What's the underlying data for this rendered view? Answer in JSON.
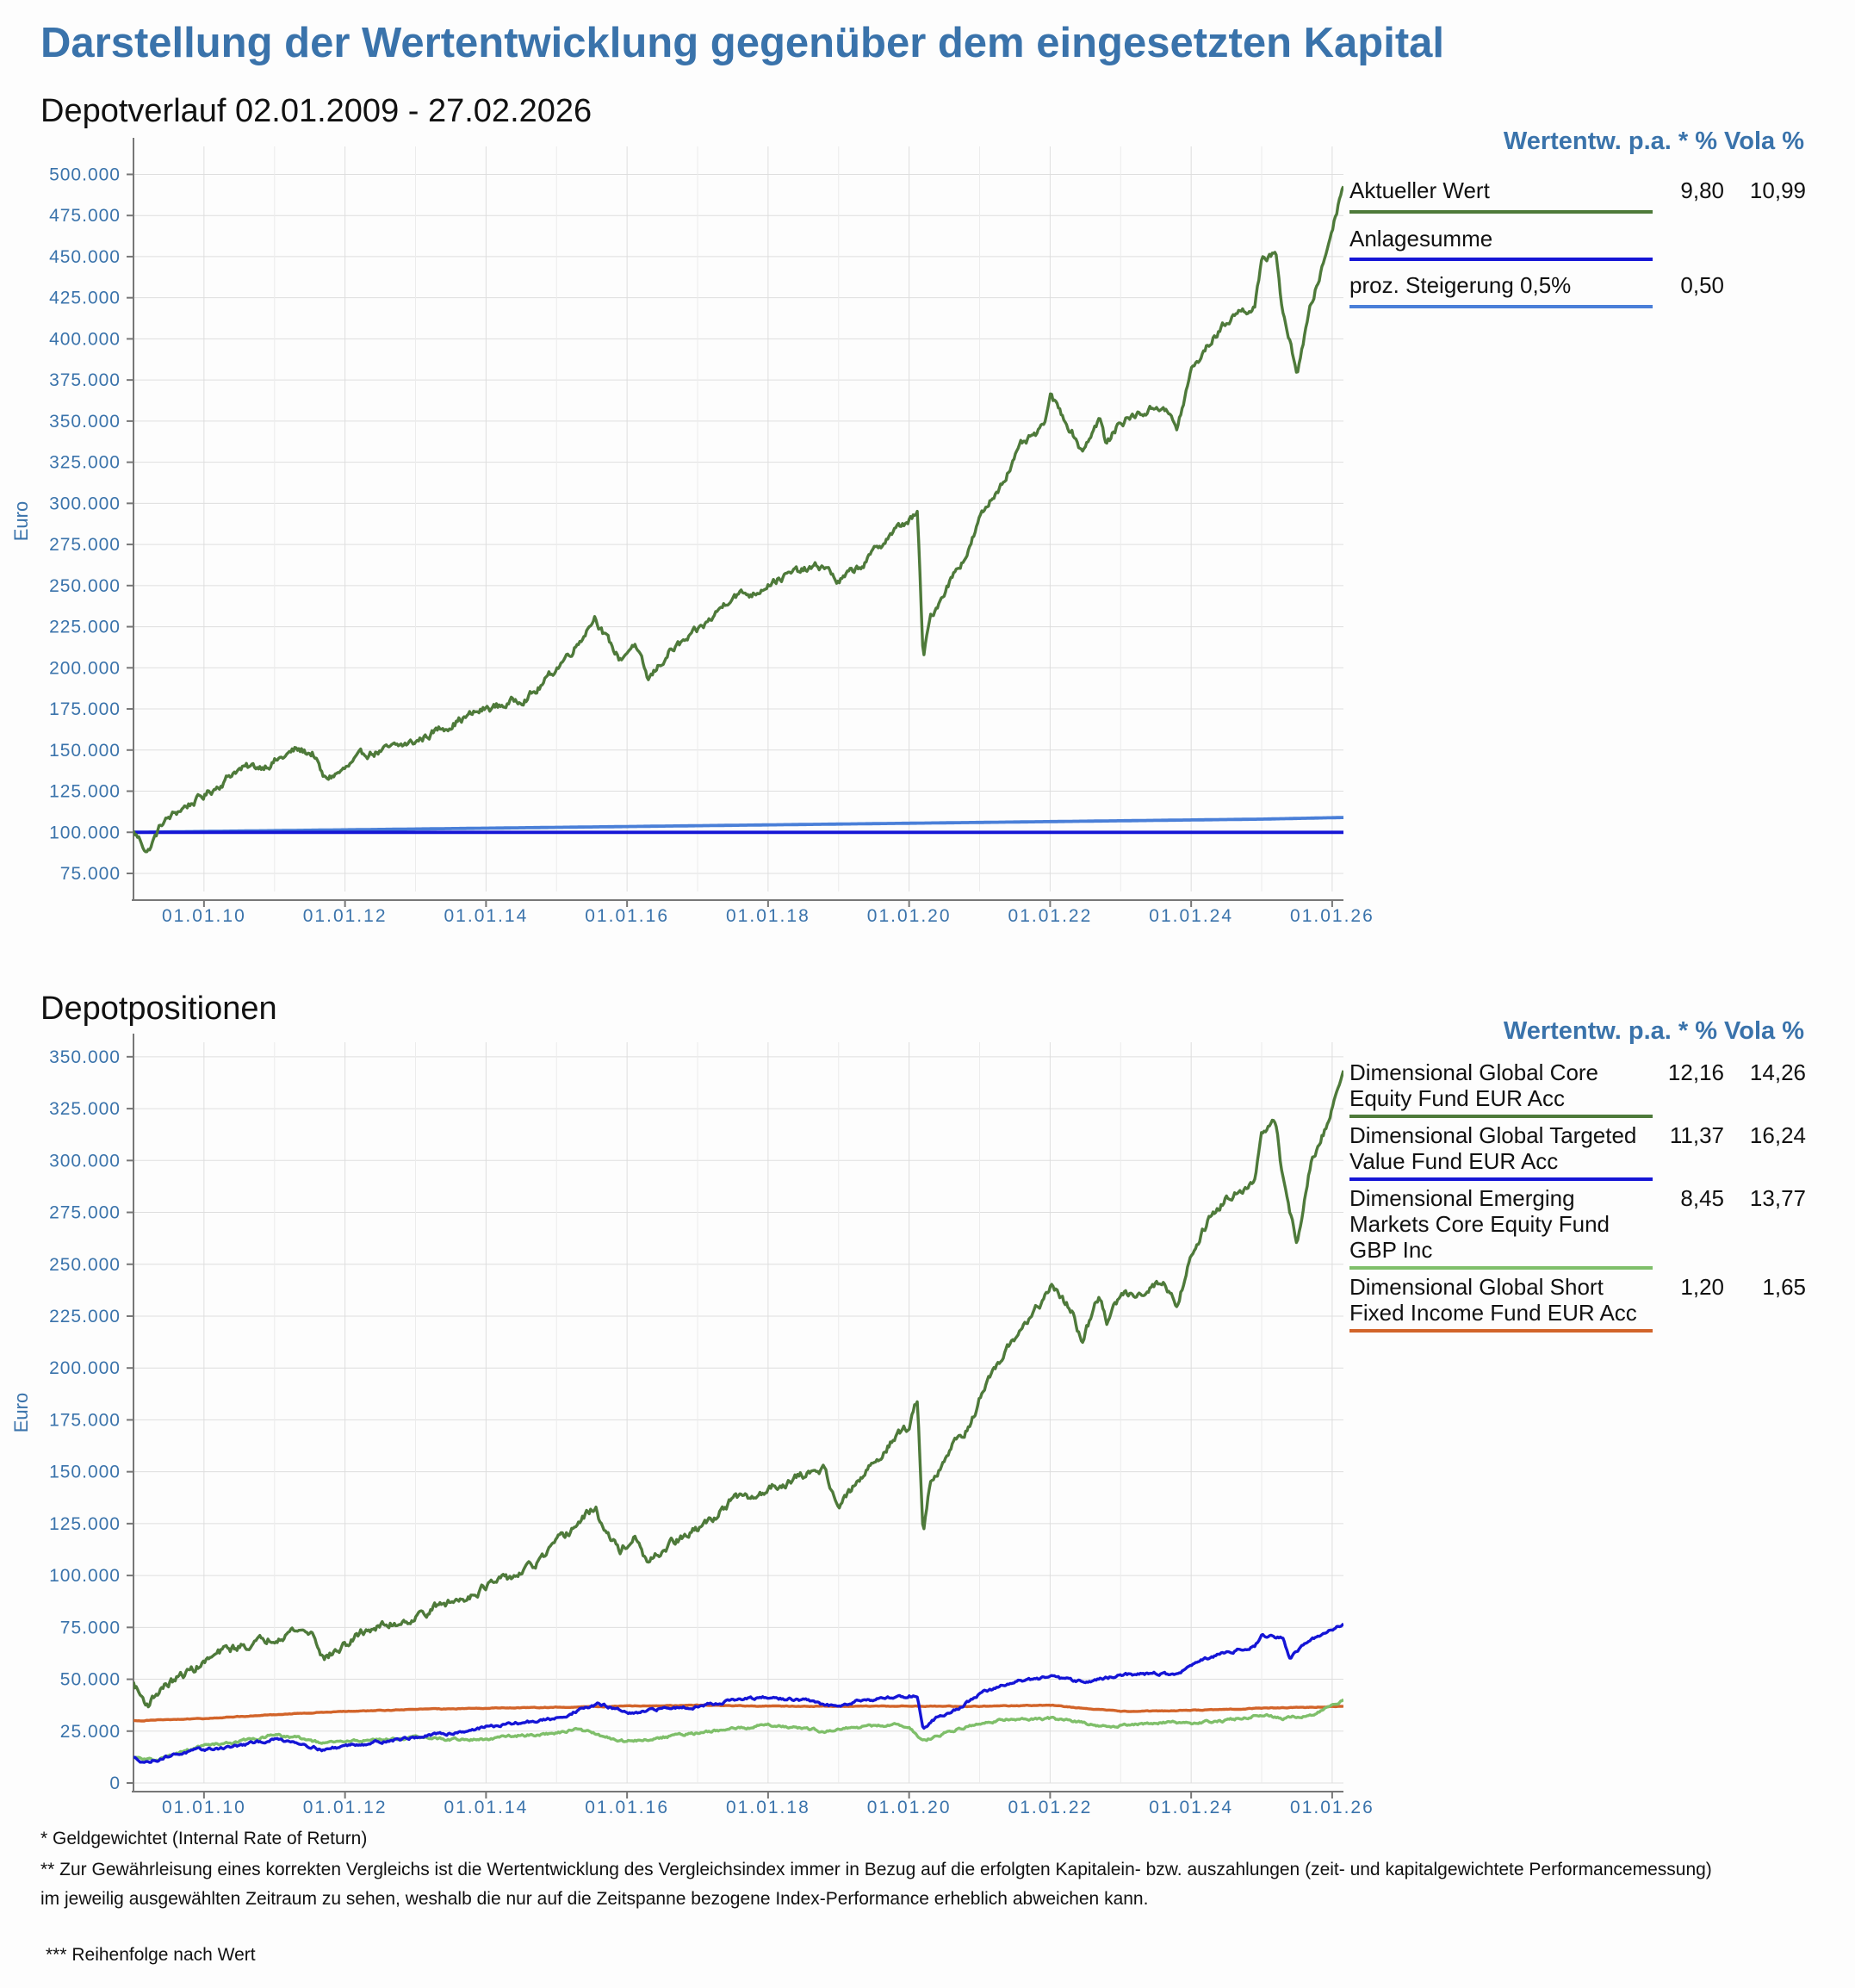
{
  "page": {
    "title": "Darstellung der Wertentwicklung gegenüber dem eingesetzten Kapital",
    "colors": {
      "accent": "#3a73ab",
      "green_dark": "#4e7a3a",
      "blue": "#1515d6",
      "light_blue": "#4a7fd8",
      "light_green": "#7fbf6a",
      "orange": "#d2642a"
    }
  },
  "chart1": {
    "section_title": "Depotverlauf 02.01.2009 - 27.02.2026",
    "legend_header": "Wertentw. p.a. * % Vola %",
    "legend": [
      {
        "name": "Aktueller Wert",
        "value1": "9,80",
        "value2": "10,99",
        "color": "#4e7a3a"
      },
      {
        "name": "Anlagesumme",
        "value1": "",
        "value2": "",
        "color": "#1515d6"
      },
      {
        "name": "proz. Steigerung 0,5%",
        "value1": "0,50",
        "value2": "",
        "color": "#4a7fd8"
      }
    ]
  },
  "chart2": {
    "section_title": "Depotpositionen",
    "legend_header": "Wertentw. p.a. * % Vola %",
    "legend": [
      {
        "name": "Dimensional Global Core\nEquity Fund EUR Acc",
        "value1": "12,16",
        "value2": "14,26",
        "color": "#4e7a3a"
      },
      {
        "name": "Dimensional Global Targeted\nValue Fund EUR Acc",
        "value1": "11,37",
        "value2": "16,24",
        "color": "#1515d6"
      },
      {
        "name": "Dimensional Emerging\nMarkets Core Equity Fund\nGBP Inc",
        "value1": "8,45",
        "value2": "13,77",
        "color": "#7fbf6a"
      },
      {
        "name": "Dimensional Global Short\nFixed Income Fund EUR Acc",
        "value1": "1,20",
        "value2": "1,65",
        "color": "#d2642a"
      }
    ]
  },
  "footnotes": {
    "note1": "* Geldgewichtet (Internal Rate of Return)",
    "note2": "** Zur Gewährleisung eines korrekten Vergleichs ist die Wertentwicklung des Vergleichsindex immer in Bezug auf die erfolgten Kapitalein- bzw. auszahlungen (zeit- und kapitalgewichtete Performancemessung) im jeweilig ausgewählten Zeitraum zu sehen, weshalb die nur auf die Zeitspanne bezogene Index-Performance erheblich abweichen kann.",
    "note3": "*** Reihenfolge nach Wert"
  },
  "chart_data": [
    {
      "type": "line",
      "title": "Depotverlauf 02.01.2009 - 27.02.2026",
      "ylabel": "Euro",
      "xlabel": "",
      "xlim": [
        2009.0,
        2026.16
      ],
      "ylim": [
        64000,
        517000
      ],
      "yticks": [
        75000,
        100000,
        125000,
        150000,
        175000,
        200000,
        225000,
        250000,
        275000,
        300000,
        325000,
        350000,
        375000,
        400000,
        425000,
        450000,
        475000,
        500000
      ],
      "ytick_labels": [
        "75.000",
        "100.000",
        "125.000",
        "150.000",
        "175.000",
        "200.000",
        "225.000",
        "250.000",
        "275.000",
        "300.000",
        "325.000",
        "350.000",
        "375.000",
        "400.000",
        "425.000",
        "450.000",
        "475.000",
        "500.000"
      ],
      "xticks": [
        2010,
        2012,
        2014,
        2016,
        2018,
        2020,
        2022,
        2024,
        2026
      ],
      "xtick_labels": [
        "01.01.10",
        "01.01.12",
        "01.01.14",
        "01.01.16",
        "01.01.18",
        "01.01.20",
        "01.01.22",
        "01.01.24",
        "01.01.26"
      ],
      "grid": true,
      "series": [
        {
          "name": "Aktueller Wert",
          "color": "#4e7a3a",
          "noise": 2500,
          "x": [
            2009.0,
            2009.1,
            2009.2,
            2009.4,
            2009.7,
            2010.0,
            2010.3,
            2010.45,
            2010.8,
            2011.1,
            2011.3,
            2011.55,
            2011.7,
            2012.0,
            2012.3,
            2012.6,
            2013.0,
            2013.3,
            2013.6,
            2014.0,
            2014.3,
            2014.7,
            2015.0,
            2015.3,
            2015.55,
            2015.7,
            2015.9,
            2016.1,
            2016.3,
            2016.6,
            2016.9,
            2017.2,
            2017.5,
            2017.8,
            2018.0,
            2018.4,
            2018.8,
            2019.0,
            2019.4,
            2019.7,
            2020.0,
            2020.12,
            2020.2,
            2020.3,
            2020.6,
            2020.85,
            2021.0,
            2021.3,
            2021.6,
            2021.9,
            2022.0,
            2022.3,
            2022.45,
            2022.7,
            2022.8,
            2023.0,
            2023.3,
            2023.6,
            2023.8,
            2024.0,
            2024.3,
            2024.6,
            2024.9,
            2025.0,
            2025.2,
            2025.3,
            2025.5,
            2025.7,
            2025.9,
            2026.16
          ],
          "y": [
            100000,
            95000,
            88000,
            105000,
            115000,
            122000,
            132000,
            138000,
            140000,
            145000,
            150000,
            148000,
            132000,
            138000,
            148000,
            150000,
            155000,
            162000,
            168000,
            175000,
            178000,
            185000,
            200000,
            215000,
            232000,
            218000,
            205000,
            215000,
            192000,
            210000,
            218000,
            230000,
            245000,
            245000,
            252000,
            258000,
            262000,
            252000,
            265000,
            280000,
            290000,
            293000,
            205000,
            230000,
            255000,
            272000,
            290000,
            312000,
            335000,
            345000,
            365000,
            345000,
            332000,
            352000,
            335000,
            350000,
            355000,
            360000,
            345000,
            380000,
            400000,
            415000,
            420000,
            445000,
            455000,
            415000,
            380000,
            420000,
            450000,
            495000
          ]
        },
        {
          "name": "Anlagesumme",
          "color": "#1515d6",
          "x": [
            2009.0,
            2026.16
          ],
          "y": [
            100000,
            100000
          ]
        },
        {
          "name": "proz. Steigerung 0,5%",
          "color": "#4a7fd8",
          "x": [
            2009.0,
            2011.0,
            2013.0,
            2015.0,
            2017.0,
            2019.0,
            2021.0,
            2023.0,
            2025.0,
            2026.16
          ],
          "y": [
            100000,
            101000,
            102000,
            103000,
            104000,
            105000,
            106000,
            107000,
            108000,
            109000
          ]
        }
      ]
    },
    {
      "type": "line",
      "title": "Depotpositionen",
      "ylabel": "Euro",
      "xlabel": "",
      "xlim": [
        2009.0,
        2026.16
      ],
      "ylim": [
        0,
        357000
      ],
      "yticks": [
        0,
        25000,
        50000,
        75000,
        100000,
        125000,
        150000,
        175000,
        200000,
        225000,
        250000,
        275000,
        300000,
        325000,
        350000
      ],
      "ytick_labels": [
        "0",
        "25.000",
        "50.000",
        "75.000",
        "100.000",
        "125.000",
        "150.000",
        "175.000",
        "200.000",
        "225.000",
        "250.000",
        "275.000",
        "300.000",
        "325.000",
        "350.000"
      ],
      "xticks": [
        2010,
        2012,
        2014,
        2016,
        2018,
        2020,
        2022,
        2024,
        2026
      ],
      "xtick_labels": [
        "01.01.10",
        "01.01.12",
        "01.01.14",
        "01.01.16",
        "01.01.18",
        "01.01.20",
        "01.01.22",
        "01.01.24",
        "01.01.26"
      ],
      "grid": true,
      "series": [
        {
          "name": "Dimensional Global Core Equity Fund EUR Acc",
          "color": "#4e7a3a",
          "noise": 2000,
          "x": [
            2009.0,
            2009.1,
            2009.2,
            2009.4,
            2009.7,
            2010.0,
            2010.3,
            2010.8,
            2011.1,
            2011.3,
            2011.55,
            2011.7,
            2012.0,
            2012.3,
            2012.6,
            2013.0,
            2013.3,
            2013.6,
            2014.0,
            2014.3,
            2014.7,
            2015.0,
            2015.3,
            2015.55,
            2015.7,
            2015.9,
            2016.1,
            2016.3,
            2016.6,
            2016.9,
            2017.2,
            2017.5,
            2017.8,
            2018.0,
            2018.4,
            2018.8,
            2019.0,
            2019.4,
            2019.7,
            2020.0,
            2020.12,
            2020.2,
            2020.3,
            2020.6,
            2020.85,
            2021.0,
            2021.3,
            2021.6,
            2021.9,
            2022.0,
            2022.3,
            2022.45,
            2022.7,
            2022.8,
            2023.0,
            2023.3,
            2023.6,
            2023.8,
            2024.0,
            2024.3,
            2024.6,
            2024.9,
            2025.0,
            2025.2,
            2025.3,
            2025.5,
            2025.7,
            2025.9,
            2026.16
          ],
          "y": [
            48000,
            42000,
            38000,
            46000,
            52000,
            58000,
            64000,
            68000,
            72000,
            74000,
            72000,
            60000,
            66000,
            74000,
            76000,
            80000,
            85000,
            88000,
            95000,
            98000,
            105000,
            115000,
            125000,
            133000,
            120000,
            112000,
            118000,
            105000,
            115000,
            120000,
            127000,
            137000,
            137000,
            142000,
            147000,
            152000,
            133000,
            150000,
            163000,
            172000,
            185000,
            122000,
            145000,
            162000,
            172000,
            185000,
            203000,
            220000,
            232000,
            240000,
            228000,
            212000,
            235000,
            222000,
            235000,
            237000,
            242000,
            230000,
            255000,
            275000,
            285000,
            290000,
            312000,
            318000,
            292000,
            260000,
            298000,
            315000,
            343000
          ]
        },
        {
          "name": "Dimensional Global Targeted Value Fund EUR Acc",
          "color": "#1515d6",
          "noise": 700,
          "x": [
            2009.0,
            2009.2,
            2009.6,
            2010.0,
            2010.5,
            2011.0,
            2011.3,
            2011.7,
            2012.0,
            2012.5,
            2013.0,
            2013.5,
            2014.0,
            2014.5,
            2015.0,
            2015.3,
            2015.6,
            2015.9,
            2016.1,
            2016.5,
            2017.0,
            2017.5,
            2018.0,
            2018.5,
            2018.9,
            2019.3,
            2019.7,
            2020.0,
            2020.12,
            2020.2,
            2020.4,
            2020.7,
            2021.0,
            2021.5,
            2022.0,
            2022.4,
            2022.7,
            2023.0,
            2023.5,
            2023.8,
            2024.0,
            2024.5,
            2024.9,
            2025.0,
            2025.3,
            2025.4,
            2025.6,
            2025.9,
            2026.16
          ],
          "y": [
            12000,
            10000,
            14000,
            16000,
            18000,
            21000,
            20000,
            16000,
            18000,
            20000,
            22000,
            24000,
            27000,
            29000,
            31000,
            35000,
            38000,
            35000,
            33000,
            36000,
            37000,
            40000,
            41000,
            40000,
            37000,
            40000,
            41000,
            42000,
            42000,
            26000,
            32000,
            36000,
            43000,
            49000,
            51000,
            49000,
            50000,
            52000,
            53000,
            52000,
            57000,
            63000,
            66000,
            71000,
            70000,
            60000,
            67000,
            72000,
            77000
          ]
        },
        {
          "name": "Dimensional Emerging Markets Core Equity Fund GBP Inc",
          "color": "#7fbf6a",
          "noise": 600,
          "x": [
            2009.0,
            2009.3,
            2009.7,
            2010.0,
            2010.5,
            2011.0,
            2011.3,
            2011.7,
            2012.0,
            2012.5,
            2013.0,
            2013.5,
            2014.0,
            2014.5,
            2015.0,
            2015.3,
            2015.7,
            2016.0,
            2016.3,
            2016.7,
            2017.0,
            2017.5,
            2018.0,
            2018.4,
            2018.8,
            2019.3,
            2019.8,
            2020.0,
            2020.2,
            2020.5,
            2021.0,
            2021.5,
            2022.0,
            2022.5,
            2022.8,
            2023.0,
            2023.5,
            2024.0,
            2024.5,
            2025.0,
            2025.3,
            2025.7,
            2026.0,
            2026.16
          ],
          "y": [
            12000,
            11000,
            15000,
            18000,
            20000,
            23000,
            22000,
            19000,
            20000,
            21000,
            22000,
            21000,
            21000,
            23000,
            24000,
            26000,
            22000,
            20000,
            21000,
            23000,
            24000,
            26000,
            28000,
            27000,
            25000,
            27000,
            28000,
            27000,
            20000,
            24000,
            29000,
            31000,
            31000,
            29000,
            27000,
            28000,
            29000,
            29000,
            30000,
            33000,
            31000,
            33000,
            37000,
            40000
          ]
        },
        {
          "name": "Dimensional Global Short Fixed Income Fund EUR Acc",
          "color": "#d2642a",
          "noise": 150,
          "x": [
            2009.0,
            2010.0,
            2011.0,
            2012.0,
            2013.0,
            2014.0,
            2015.0,
            2016.0,
            2017.0,
            2018.0,
            2019.0,
            2020.0,
            2021.0,
            2022.0,
            2022.5,
            2023.0,
            2024.0,
            2025.0,
            2026.16
          ],
          "y": [
            30000,
            31000,
            33000,
            34500,
            35500,
            36000,
            36500,
            37000,
            37500,
            37000,
            37000,
            37000,
            37000,
            37500,
            36000,
            34500,
            35000,
            36000,
            37000
          ]
        }
      ]
    }
  ]
}
